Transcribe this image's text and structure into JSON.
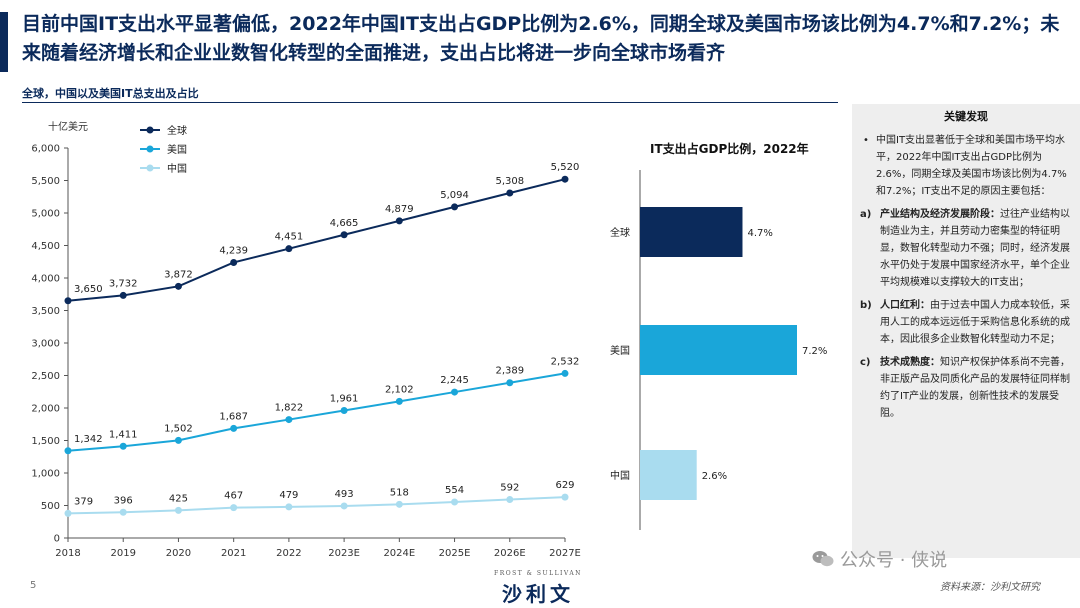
{
  "headline": "目前中国IT支出水平显著偏低，2022年中国IT支出占GDP比例为2.6%，同期全球及美国市场该比例为4.7%和7.2%；未来随着经济增长和企业业数智化转型的全面推进，支出占比将进一步向全球市场看齐",
  "subtitle": "全球，中国以及美国IT总支出及占比",
  "colors": {
    "navy": "#0b2a5b",
    "blue": "#1aa6d9",
    "light_blue": "#a9dcef",
    "grid": "#d0d0d0"
  },
  "chart_data": [
    {
      "type": "line",
      "ylabel": "十亿美元",
      "ylim": [
        0,
        6000
      ],
      "yticks": [
        "0",
        "500",
        "1,000",
        "1,500",
        "2,000",
        "2,500",
        "3,000",
        "3,500",
        "4,000",
        "4,500",
        "5,000",
        "5,500",
        "6,000"
      ],
      "categories": [
        "2018",
        "2019",
        "2020",
        "2021",
        "2022",
        "2023E",
        "2024E",
        "2025E",
        "2026E",
        "2027E"
      ],
      "legend_position": "top-left",
      "series": [
        {
          "name": "全球",
          "color": "#0b2a5b",
          "values": [
            3650,
            3732,
            3872,
            4239,
            4451,
            4665,
            4879,
            5094,
            5308,
            5520
          ],
          "labels": [
            "3,650",
            "3,732",
            "3,872",
            "4,239",
            "4,451",
            "4,665",
            "4,879",
            "5,094",
            "5,308",
            "5,520"
          ]
        },
        {
          "name": "美国",
          "color": "#1aa6d9",
          "values": [
            1342,
            1411,
            1502,
            1687,
            1822,
            1961,
            2102,
            2245,
            2389,
            2532
          ],
          "labels": [
            "1,342",
            "1,411",
            "1,502",
            "1,687",
            "1,822",
            "1,961",
            "2,102",
            "2,245",
            "2,389",
            "2,532"
          ]
        },
        {
          "name": "中国",
          "color": "#a9dcef",
          "values": [
            379,
            396,
            425,
            467,
            479,
            493,
            518,
            554,
            592,
            629
          ],
          "labels": [
            "379",
            "396",
            "425",
            "467",
            "479",
            "493",
            "518",
            "554",
            "592",
            "629"
          ]
        }
      ]
    },
    {
      "type": "bar",
      "orientation": "horizontal",
      "title": "IT支出占GDP比例，2022年",
      "categories": [
        "全球",
        "美国",
        "中国"
      ],
      "values": [
        4.7,
        7.2,
        2.6
      ],
      "labels": [
        "4.7%",
        "7.2%",
        "2.6%"
      ],
      "colors": [
        "#0b2a5b",
        "#1aa6d9",
        "#a9dcef"
      ],
      "xlim": [
        0,
        7.2
      ]
    }
  ],
  "sidebar": {
    "title": "关键发现",
    "intro": "中国IT支出显著低于全球和美国市场平均水平，2022年中国IT支出占GDP比例为2.6%，同期全球及美国市场该比例为4.7%和7.2%；IT支出不足的原因主要包括：",
    "points": [
      {
        "marker": "a)",
        "head": "产业结构及经济发展阶段：",
        "body": "过往产业结构以制造业为主，并且劳动力密集型的特征明显，数智化转型动力不强；同时，经济发展水平仍处于发展中国家经济水平，单个企业平均规模难以支撑较大的IT支出；"
      },
      {
        "marker": "b)",
        "head": "人口红利：",
        "body": "由于过去中国人力成本较低，采用人工的成本远远低于采购信息化系统的成本，因此很多企业数智化转型动力不足；"
      },
      {
        "marker": "c)",
        "head": "技术成熟度：",
        "body": "知识产权保护体系尚不完善，非正版产品及同质化产品的发展特征同样制约了IT产业的发展，创新性技术的发展受阻。"
      }
    ]
  },
  "footer": {
    "page_number": "5",
    "logo_top": "FROST & SULLIVAN",
    "logo_main": "沙利文",
    "watermark": "公众号 · 侠说",
    "source": "资料来源：沙利文研究"
  }
}
